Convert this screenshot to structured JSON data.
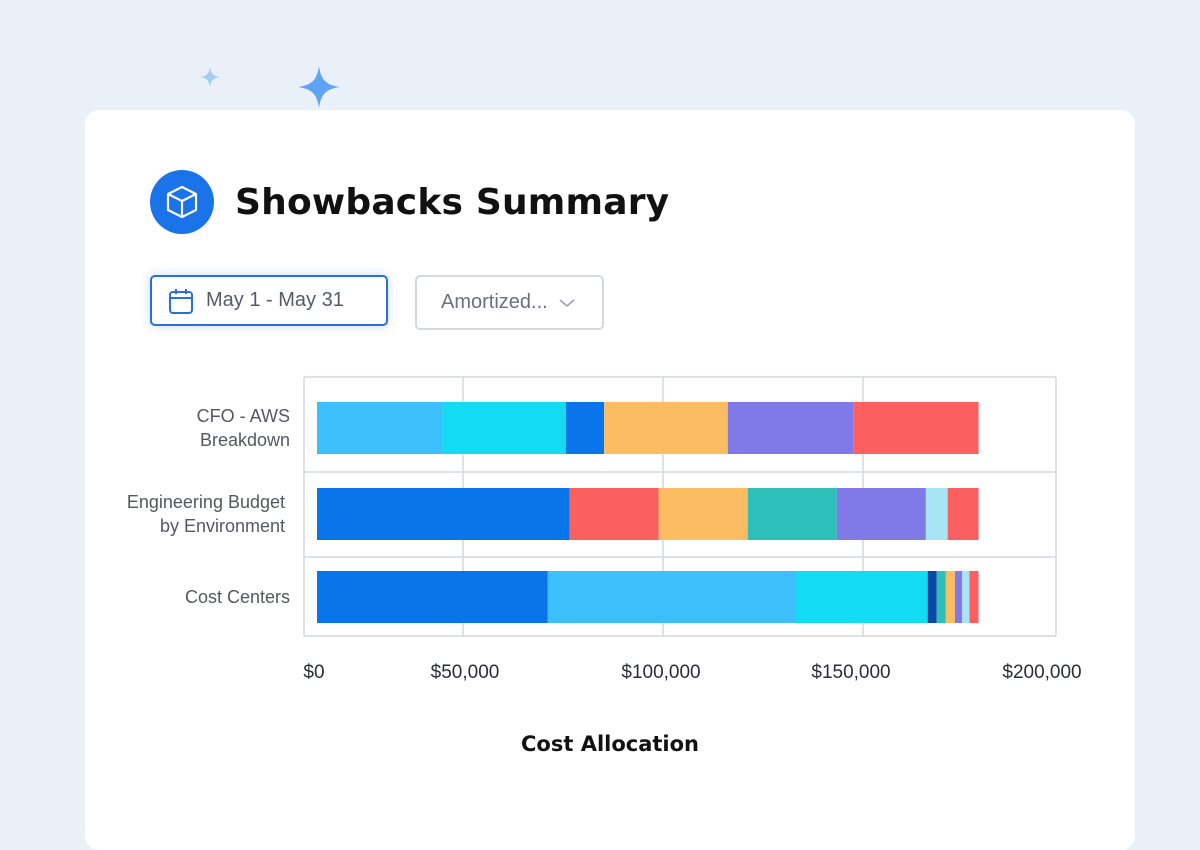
{
  "header": {
    "title": "Showbacks Summary",
    "logo_icon": "cube-icon",
    "accent": "#1a73e8"
  },
  "filters": {
    "date_range": "May 1 - May 31",
    "date_icon": "calendar-icon",
    "cost_type": "Amortized...",
    "cost_type_icon": "chevron-down-icon"
  },
  "chart_data": {
    "type": "bar",
    "orientation": "horizontal",
    "stacked": true,
    "title": "",
    "xlabel": "Cost Allocation",
    "ylabel": "",
    "xlim": [
      0,
      200000
    ],
    "xticks": [
      0,
      50000,
      100000,
      150000,
      200000
    ],
    "xtick_labels": [
      "$0",
      "$50,000",
      "$100,000",
      "$150,000",
      "$200,000"
    ],
    "grid": true,
    "legend": "none",
    "categories": [
      [
        "CFO - AWS",
        "Breakdown"
      ],
      [
        "Engineering Budget",
        "by Environment"
      ],
      [
        "Cost Centers"
      ]
    ],
    "bars": [
      {
        "segments": [
          {
            "value": 34500,
            "color": "#3cbffb"
          },
          {
            "value": 34000,
            "color": "#13dbf1"
          },
          {
            "value": 10500,
            "color": "#0a74ea"
          },
          {
            "value": 34000,
            "color": "#fcbc62"
          },
          {
            "value": 34500,
            "color": "#7f7ae8"
          },
          {
            "value": 34500,
            "color": "#fc5f5f"
          }
        ]
      },
      {
        "segments": [
          {
            "value": 69500,
            "color": "#0a74ea"
          },
          {
            "value": 24500,
            "color": "#fc5f5f"
          },
          {
            "value": 24500,
            "color": "#fcbc62"
          },
          {
            "value": 24500,
            "color": "#2dbfb9"
          },
          {
            "value": 24500,
            "color": "#7f7ae8"
          },
          {
            "value": 6000,
            "color": "#a7e4f4"
          },
          {
            "value": 8500,
            "color": "#fc5f5f"
          }
        ]
      },
      {
        "segments": [
          {
            "value": 63500,
            "color": "#0a74ea"
          },
          {
            "value": 68000,
            "color": "#3cbffb"
          },
          {
            "value": 36500,
            "color": "#13dbf1"
          },
          {
            "value": 2500,
            "color": "#0a48a8"
          },
          {
            "value": 2500,
            "color": "#2dbfb9"
          },
          {
            "value": 2500,
            "color": "#fcbc62"
          },
          {
            "value": 2000,
            "color": "#7f7ae8"
          },
          {
            "value": 2000,
            "color": "#a7e4f4"
          },
          {
            "value": 2500,
            "color": "#fc5f5f"
          }
        ]
      }
    ]
  }
}
